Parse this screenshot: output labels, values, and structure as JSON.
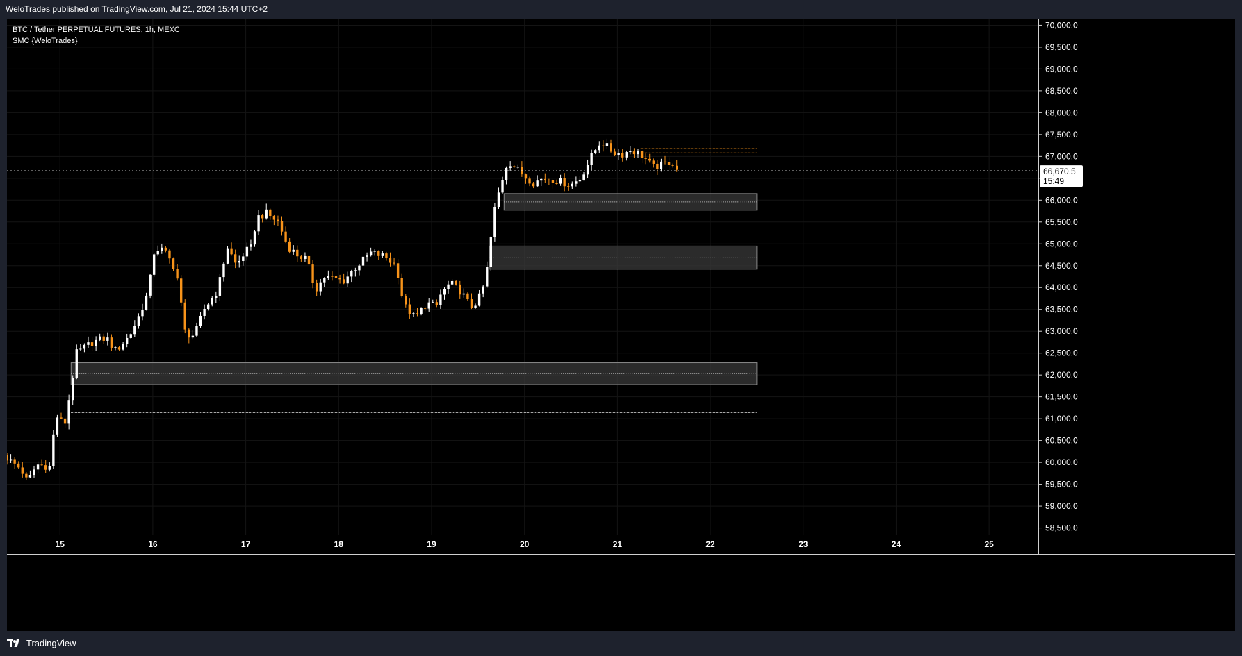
{
  "header": {
    "published": "WeloTrades published on TradingView.com, Jul 21, 2024 15:44 UTC+2"
  },
  "legend": {
    "symbol": "BTC / Tether PERPETUAL FUTURES, 1h, MEXC",
    "indicator": "SMC {WeloTrades}"
  },
  "footer": {
    "brand": "TradingView",
    "icon": "tradingview-logo-icon"
  },
  "colors": {
    "background": "#000000",
    "up": "#ffffff",
    "down": "#f7931a",
    "zone_fill": "#3a3a3a",
    "zone_border": "#8a8a8a",
    "price_label_bg": "#ffffff",
    "grid": "#141414"
  },
  "chart_data": {
    "type": "candlestick",
    "x_tick_labels": [
      "15",
      "16",
      "17",
      "18",
      "19",
      "20",
      "21",
      "22",
      "23",
      "24",
      "25"
    ],
    "y_tick_labels": [
      "70,000.0",
      "69,500.0",
      "69,000.0",
      "68,500.0",
      "68,000.0",
      "67,500.0",
      "67,000.0",
      "66,500.0",
      "66,000.0",
      "65,500.0",
      "65,000.0",
      "64,500.0",
      "64,000.0",
      "63,500.0",
      "63,000.0",
      "62,500.0",
      "62,000.0",
      "61,500.0",
      "61,000.0",
      "60,500.0",
      "60,000.0",
      "59,500.0",
      "59,000.0",
      "58,500.0"
    ],
    "ylim": [
      58350,
      70150
    ],
    "xlim_days": [
      14.43,
      25.53
    ],
    "current_price": {
      "value": 66670.5,
      "label": "66,670.5",
      "countdown": "15:49"
    },
    "zones": [
      {
        "x_start": 19.78,
        "x_end": 22.5,
        "top": 66150,
        "bottom": 65770,
        "mid": 65960
      },
      {
        "x_start": 19.62,
        "x_end": 22.5,
        "top": 64950,
        "bottom": 64420,
        "mid": 64680
      },
      {
        "x_start": 15.12,
        "x_end": 22.5,
        "top": 62280,
        "bottom": 61780,
        "mid": 62030
      }
    ],
    "levels": [
      {
        "x_start": 15.12,
        "x_end": 22.5,
        "value": 61140,
        "color": "#ffffff"
      },
      {
        "x_start": 21.25,
        "x_end": 22.5,
        "value": 67180,
        "color": "#f7931a"
      },
      {
        "x_start": 21.25,
        "x_end": 22.5,
        "value": 67080,
        "color": "#f7931a"
      }
    ],
    "close_anchors": [
      [
        14.43,
        60100
      ],
      [
        14.58,
        59850
      ],
      [
        14.65,
        59550
      ],
      [
        14.75,
        59950
      ],
      [
        14.9,
        59900
      ],
      [
        14.95,
        61100
      ],
      [
        15.05,
        60850
      ],
      [
        15.18,
        62500
      ],
      [
        15.35,
        62750
      ],
      [
        15.5,
        62850
      ],
      [
        15.6,
        62550
      ],
      [
        15.75,
        62900
      ],
      [
        15.85,
        63350
      ],
      [
        15.95,
        63900
      ],
      [
        16.02,
        64900
      ],
      [
        16.12,
        64850
      ],
      [
        16.25,
        64400
      ],
      [
        16.35,
        62950
      ],
      [
        16.45,
        62900
      ],
      [
        16.55,
        63500
      ],
      [
        16.7,
        63950
      ],
      [
        16.8,
        64950
      ],
      [
        16.9,
        64500
      ],
      [
        17.0,
        64850
      ],
      [
        17.05,
        64850
      ],
      [
        17.12,
        65600
      ],
      [
        17.22,
        65700
      ],
      [
        17.35,
        65500
      ],
      [
        17.45,
        64950
      ],
      [
        17.55,
        64750
      ],
      [
        17.65,
        64650
      ],
      [
        17.75,
        63950
      ],
      [
        17.85,
        64250
      ],
      [
        17.95,
        64200
      ],
      [
        18.05,
        64150
      ],
      [
        18.2,
        64500
      ],
      [
        18.35,
        64800
      ],
      [
        18.5,
        64700
      ],
      [
        18.62,
        64500
      ],
      [
        18.7,
        63600
      ],
      [
        18.82,
        63300
      ],
      [
        18.95,
        63650
      ],
      [
        19.05,
        63550
      ],
      [
        19.1,
        63850
      ],
      [
        19.2,
        64100
      ],
      [
        19.32,
        63900
      ],
      [
        19.42,
        63550
      ],
      [
        19.5,
        63700
      ],
      [
        19.58,
        64150
      ],
      [
        19.63,
        65000
      ],
      [
        19.68,
        65800
      ],
      [
        19.75,
        66400
      ],
      [
        19.82,
        66900
      ],
      [
        19.9,
        66750
      ],
      [
        20.0,
        66550
      ],
      [
        20.1,
        66400
      ],
      [
        20.2,
        66500
      ],
      [
        20.35,
        66450
      ],
      [
        20.5,
        66350
      ],
      [
        20.6,
        66500
      ],
      [
        20.72,
        67000
      ],
      [
        20.82,
        67350
      ],
      [
        20.95,
        67100
      ],
      [
        21.05,
        67050
      ],
      [
        21.15,
        67150
      ],
      [
        21.28,
        67000
      ],
      [
        21.38,
        66750
      ],
      [
        21.48,
        66800
      ],
      [
        21.58,
        66900
      ],
      [
        21.65,
        66670.5
      ]
    ]
  }
}
